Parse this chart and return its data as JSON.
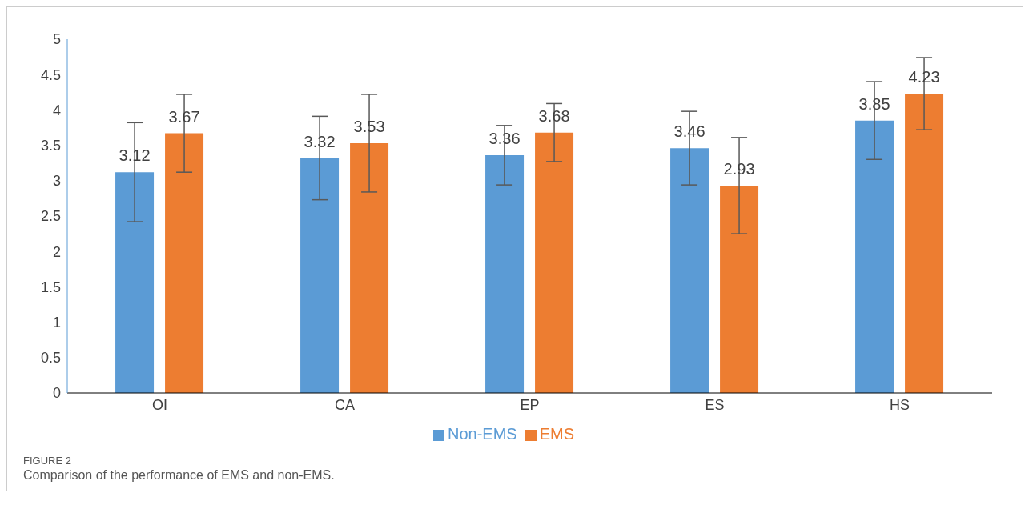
{
  "chart_data": {
    "type": "bar",
    "categories": [
      "OI",
      "CA",
      "EP",
      "ES",
      "HS"
    ],
    "series": [
      {
        "name": "Non-EMS",
        "color": "#5b9bd5",
        "values": [
          3.12,
          3.32,
          3.36,
          3.46,
          3.85
        ],
        "errors": [
          0.7,
          0.59,
          0.42,
          0.52,
          0.55
        ]
      },
      {
        "name": "EMS",
        "color": "#ed7d31",
        "values": [
          3.67,
          3.53,
          3.68,
          2.93,
          4.23
        ],
        "errors": [
          0.55,
          0.69,
          0.41,
          0.68,
          0.51
        ]
      }
    ],
    "ylim": [
      0,
      5
    ],
    "yticks": [
      0,
      0.5,
      1,
      1.5,
      2,
      2.5,
      3,
      3.5,
      4,
      4.5,
      5
    ],
    "grid": false,
    "legend": "bottom",
    "data_labels": true,
    "annotations": [
      "FIGURE 2",
      "Comparison of the performance of EMS and non-EMS."
    ]
  }
}
